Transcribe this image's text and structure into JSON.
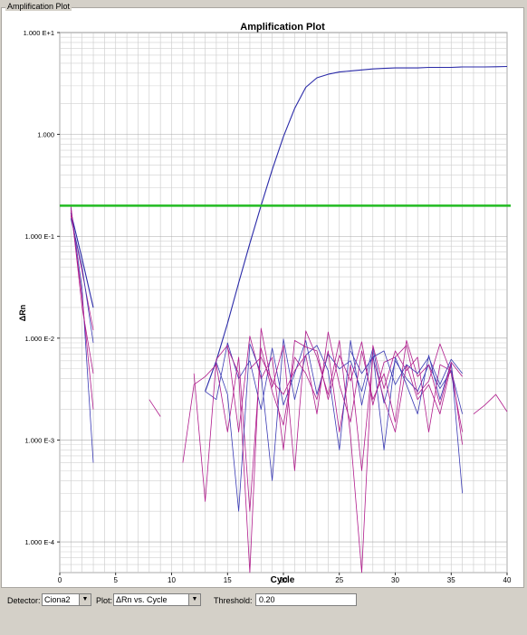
{
  "panel": {
    "caption": "Amplification Plot"
  },
  "controls": {
    "detector_label": "Detector:",
    "detector_value": "Ciona2",
    "plot_label": "Plot:",
    "plot_value": "ΔRn vs. Cycle",
    "threshold_label": "Threshold:",
    "threshold_value": "0.20",
    "dropdown_icon": "chevron-down-icon"
  },
  "chart_data": {
    "type": "line",
    "title": "Amplification Plot",
    "xlabel": "Cycle",
    "ylabel": "ΔRn",
    "xlim": [
      0,
      40
    ],
    "ylim": [
      5e-05,
      10
    ],
    "y_scale": "log",
    "grid": true,
    "x_ticks": [
      0,
      5,
      10,
      15,
      20,
      25,
      30,
      35,
      40
    ],
    "y_ticks": [
      {
        "value": 10,
        "label": "1.000 E+1"
      },
      {
        "value": 1,
        "label": "1.000"
      },
      {
        "value": 0.1,
        "label": "1.000 E-1"
      },
      {
        "value": 0.01,
        "label": "1.000 E-2"
      },
      {
        "value": 0.001,
        "label": "1.000 E-3"
      },
      {
        "value": 0.0001,
        "label": "1.000 E-4"
      }
    ],
    "threshold": {
      "value": 0.2,
      "color": "#22bb22"
    },
    "colors": {
      "amplification": "#2a2aa8",
      "blue_noise": "#3a3ab4",
      "magenta_noise": "#b01c8c"
    },
    "series": [
      {
        "x": [
          1,
          2,
          3,
          4,
          5,
          6,
          7,
          8,
          9,
          10,
          11,
          12,
          13,
          14,
          15,
          16,
          17,
          18,
          19,
          20,
          21,
          22,
          23,
          24,
          25,
          26,
          27,
          28,
          29,
          30,
          31,
          32,
          33,
          34,
          35,
          36,
          37,
          38,
          39,
          40
        ],
        "values": [
          0.17,
          0.06,
          0.02,
          null,
          null,
          null,
          null,
          null,
          null,
          null,
          null,
          null,
          0.003,
          0.006,
          0.014,
          0.035,
          0.085,
          0.2,
          0.45,
          0.95,
          1.8,
          2.9,
          3.6,
          3.9,
          4.1,
          4.2,
          4.3,
          4.4,
          4.45,
          4.5,
          4.5,
          4.5,
          4.55,
          4.55,
          4.55,
          4.6,
          4.6,
          4.6,
          4.62,
          4.65
        ]
      },
      {
        "x": [
          13,
          14,
          15,
          16,
          17,
          18,
          19,
          20,
          21,
          22,
          23,
          24,
          25,
          26,
          27,
          28,
          29,
          30,
          31,
          32,
          33,
          34,
          35,
          36
        ],
        "values": [
          0.003,
          0.0025,
          0.009,
          0.004,
          0.006,
          0.002,
          0.008,
          0.0022,
          0.0045,
          0.0095,
          0.0028,
          0.007,
          0.005,
          0.006,
          0.003,
          0.008,
          0.0023,
          0.006,
          0.004,
          0.003,
          0.0055,
          0.0032,
          0.0048,
          0.0018
        ]
      },
      {
        "x": [
          11,
          12,
          13,
          14,
          15,
          16,
          17,
          18,
          19,
          20,
          21,
          22,
          23,
          24,
          25,
          26,
          27,
          28,
          29,
          30,
          31,
          32,
          33,
          34,
          35,
          36
        ],
        "values": [
          0.0006,
          0.0035,
          0.0042,
          0.0055,
          0.0012,
          0.0065,
          0.0002,
          0.008,
          0.003,
          0.0014,
          0.0065,
          0.0045,
          0.0025,
          0.0075,
          0.0012,
          0.0055,
          0.0005,
          0.0065,
          0.0025,
          0.0012,
          0.0055,
          0.0025,
          0.0035,
          0.0018,
          0.0055,
          0.0009
        ]
      },
      {
        "x": [
          12,
          13,
          14,
          15,
          16,
          17,
          18,
          19,
          20,
          21,
          22,
          23,
          24,
          25,
          26,
          27,
          28,
          29,
          30,
          31,
          32,
          33,
          34,
          35,
          36
        ],
        "values": [
          0.0045,
          0.00025,
          0.0062,
          0.0085,
          0.0012,
          0.0105,
          0.004,
          0.0065,
          0.0008,
          0.0095,
          0.0082,
          0.0075,
          0.0025,
          0.0068,
          0.0038,
          0.0092,
          0.0022,
          0.0058,
          0.0065,
          0.0085,
          0.0028,
          0.0038,
          0.0088,
          0.0045,
          0.0012
        ]
      },
      {
        "x": [
          14,
          15,
          16,
          17,
          18,
          19,
          20,
          21,
          22,
          23,
          24,
          25,
          26,
          27,
          28,
          29,
          30,
          31,
          32,
          33,
          34,
          35,
          36
        ],
        "values": [
          0.0058,
          0.0028,
          0.0002,
          0.0088,
          0.0045,
          0.0004,
          0.0098,
          0.0025,
          0.0068,
          0.0085,
          0.0048,
          0.0008,
          0.0095,
          0.0022,
          0.0072,
          0.0008,
          0.0065,
          0.0035,
          0.0018,
          0.0068,
          0.0025,
          0.0058,
          0.0003
        ]
      },
      {
        "x": [
          15,
          16,
          17,
          18,
          19,
          20,
          21,
          22,
          23,
          24,
          25,
          26,
          27,
          28,
          29,
          30,
          31,
          32,
          33,
          34,
          35
        ],
        "values": [
          0.008,
          0.0045,
          5e-05,
          0.0125,
          0.0033,
          0.0085,
          0.0005,
          0.0118,
          0.0065,
          0.0028,
          0.0095,
          0.0011,
          5e-05,
          0.0085,
          0.0032,
          0.0075,
          0.0048,
          0.0065,
          0.0012,
          0.0055,
          0.0048
        ]
      },
      {
        "x": [
          17,
          18,
          19,
          20,
          21,
          22,
          23,
          24,
          25,
          26,
          27,
          28,
          29,
          30,
          31,
          32,
          33,
          34,
          35,
          36
        ],
        "values": [
          0.005,
          0.0065,
          0.0038,
          0.0028,
          0.0048,
          0.0068,
          0.0018,
          0.0115,
          0.0035,
          0.0015,
          0.0075,
          0.0025,
          0.0045,
          0.0015,
          0.0095,
          0.0042,
          0.0055,
          0.0022,
          0.0058,
          0.0042
        ]
      },
      {
        "x": [
          26,
          27,
          28,
          29,
          30,
          31,
          32,
          33,
          34,
          35,
          36
        ],
        "values": [
          0.0075,
          0.0045,
          0.0065,
          0.0075,
          0.0035,
          0.0055,
          0.0045,
          0.0065,
          0.0035,
          0.0062,
          0.0045
        ]
      },
      {
        "x": [
          37,
          38,
          39,
          40
        ],
        "values": [
          0.0018,
          0.0022,
          0.0028,
          0.0019
        ]
      },
      {
        "x": [
          8,
          9
        ],
        "values": [
          0.0025,
          0.0017
        ]
      },
      {
        "x": [
          1,
          2,
          3
        ],
        "values": [
          0.19,
          0.03,
          0.0006
        ]
      },
      {
        "x": [
          1,
          2,
          3
        ],
        "values": [
          0.16,
          0.045,
          0.012
        ]
      },
      {
        "x": [
          1,
          2,
          3
        ],
        "values": [
          0.2,
          0.02,
          0.0045
        ]
      },
      {
        "x": [
          1,
          2,
          3
        ],
        "values": [
          0.15,
          0.05,
          0.009
        ]
      },
      {
        "x": [
          1,
          2,
          3
        ],
        "values": [
          0.18,
          0.025,
          0.002
        ]
      }
    ]
  }
}
